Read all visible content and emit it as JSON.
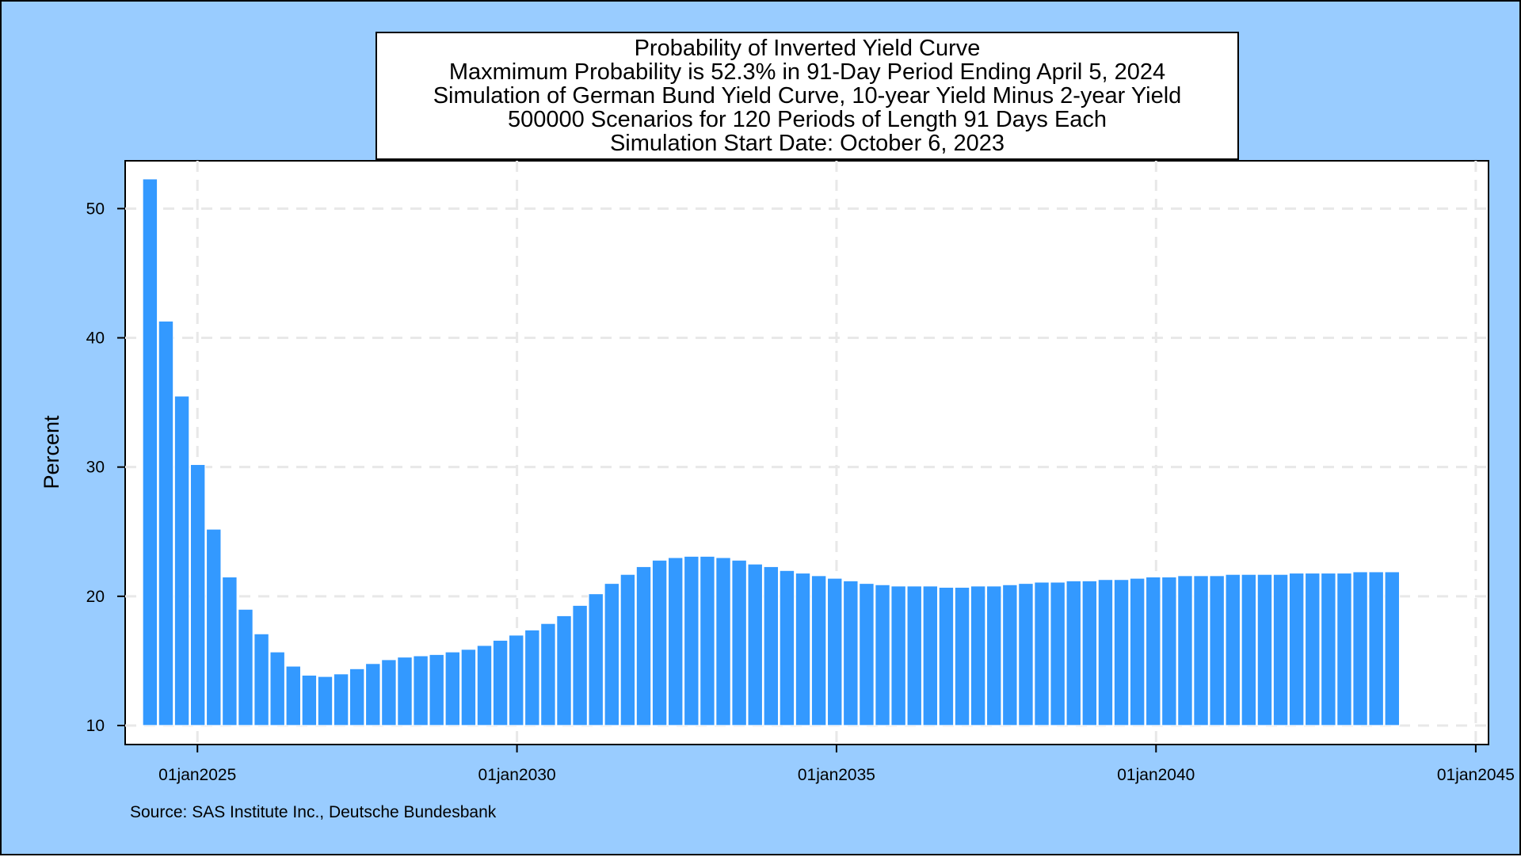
{
  "colors": {
    "background": "#99ccff",
    "plot_background": "#ffffff",
    "bar": "#3399ff",
    "bar_outline": "#ffffff",
    "grid": "#e8e8e8"
  },
  "note": "Source: SAS Institute Inc., Deutsche Bundesbank",
  "chart_data": {
    "type": "bar",
    "title_lines": [
      "Probability of Inverted Yield Curve",
      "Maxmimum Probability is 52.3% in 91-Day Period Ending April 5, 2024",
      "Simulation of German Bund Yield Curve, 10-year Yield Minus 2-year Yield",
      "500000 Scenarios for 120 Periods of Length 91 Days Each",
      "Simulation Start Date: October 6, 2023"
    ],
    "xlabel": "",
    "ylabel": "Percent",
    "ylim": [
      10,
      53.7
    ],
    "y_ticks": [
      10,
      20,
      30,
      40,
      50
    ],
    "y_tick_labels": [
      "10",
      "20",
      "30",
      "40",
      "50"
    ],
    "x_range": [
      "2023-11-15",
      "2045-03-15"
    ],
    "x_ticks": [
      "2025-01-01",
      "2030-01-01",
      "2035-01-01",
      "2040-01-01",
      "2045-01-01"
    ],
    "x_tick_labels": [
      "01jan2025",
      "01jan2030",
      "01jan2035",
      "01jan2040",
      "01jan2045"
    ],
    "grid": true,
    "x": [
      "2024-04-05",
      "2024-07-05",
      "2024-10-04",
      "2025-01-03",
      "2025-04-04",
      "2025-07-04",
      "2025-10-03",
      "2026-01-02",
      "2026-04-03",
      "2026-07-03",
      "2026-10-02",
      "2027-01-01",
      "2027-04-02",
      "2027-07-02",
      "2027-10-01",
      "2027-12-31",
      "2028-03-31",
      "2028-06-30",
      "2028-09-29",
      "2028-12-29",
      "2029-03-30",
      "2029-06-29",
      "2029-09-28",
      "2029-12-28",
      "2030-03-29",
      "2030-06-28",
      "2030-09-27",
      "2030-12-27",
      "2031-03-28",
      "2031-06-27",
      "2031-09-26",
      "2031-12-26",
      "2032-03-26",
      "2032-06-25",
      "2032-09-24",
      "2032-12-24",
      "2033-03-25",
      "2033-06-24",
      "2033-09-23",
      "2033-12-23",
      "2034-03-24",
      "2034-06-23",
      "2034-09-22",
      "2034-12-22",
      "2035-03-23",
      "2035-06-22",
      "2035-09-21",
      "2035-12-21",
      "2036-03-21",
      "2036-06-20",
      "2036-09-19",
      "2036-12-19",
      "2037-03-20",
      "2037-06-19",
      "2037-09-18",
      "2037-12-18",
      "2038-03-19",
      "2038-06-18",
      "2038-09-17",
      "2038-12-17",
      "2039-03-18",
      "2039-06-17",
      "2039-09-16",
      "2039-12-16",
      "2040-03-16",
      "2040-06-15",
      "2040-09-14",
      "2040-12-14",
      "2041-03-15",
      "2041-06-14",
      "2041-09-13",
      "2041-12-13",
      "2042-03-14",
      "2042-06-13",
      "2042-09-12",
      "2042-12-12",
      "2043-03-13",
      "2043-06-12",
      "2043-09-11"
    ],
    "values": [
      52.3,
      41.3,
      35.5,
      30.2,
      25.2,
      21.5,
      19.0,
      17.1,
      15.7,
      14.6,
      13.9,
      13.8,
      14.0,
      14.4,
      14.8,
      15.1,
      15.3,
      15.4,
      15.5,
      15.7,
      15.9,
      16.2,
      16.6,
      17.0,
      17.4,
      17.9,
      18.5,
      19.3,
      20.2,
      21.0,
      21.7,
      22.3,
      22.8,
      23.0,
      23.1,
      23.1,
      23.0,
      22.8,
      22.5,
      22.3,
      22.0,
      21.8,
      21.6,
      21.4,
      21.2,
      21.0,
      20.9,
      20.8,
      20.8,
      20.8,
      20.7,
      20.7,
      20.8,
      20.8,
      20.9,
      21.0,
      21.1,
      21.1,
      21.2,
      21.2,
      21.3,
      21.3,
      21.4,
      21.5,
      21.5,
      21.6,
      21.6,
      21.6,
      21.7,
      21.7,
      21.7,
      21.7,
      21.8,
      21.8,
      21.8,
      21.8,
      21.9,
      21.9,
      21.9
    ]
  }
}
